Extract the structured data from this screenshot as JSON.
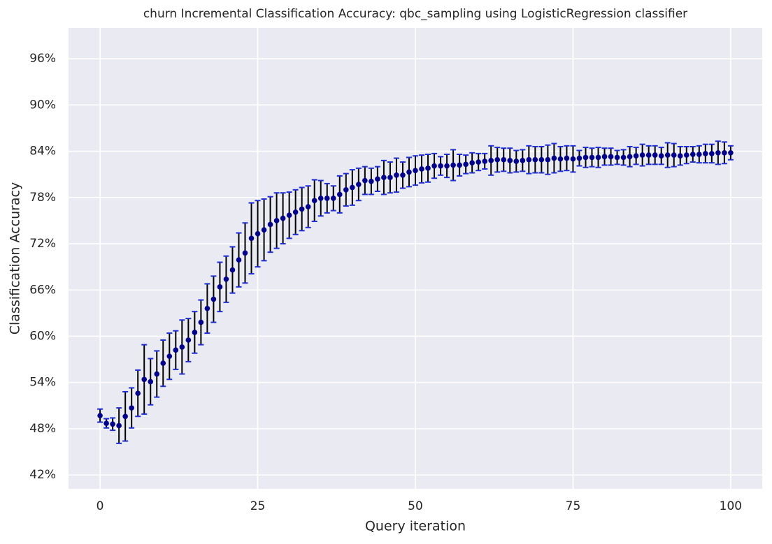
{
  "chart_data": {
    "type": "errorbar",
    "title": "churn Incremental Classification Accuracy: qbc_sampling using LogisticRegression classifier",
    "x_label": "Query iteration",
    "y_label": "Classification Accuracy",
    "x": [
      0,
      1,
      2,
      3,
      4,
      5,
      6,
      7,
      8,
      9,
      10,
      11,
      12,
      13,
      14,
      15,
      16,
      17,
      18,
      19,
      20,
      21,
      22,
      23,
      24,
      25,
      26,
      27,
      28,
      29,
      30,
      31,
      32,
      33,
      34,
      35,
      36,
      37,
      38,
      39,
      40,
      41,
      42,
      43,
      44,
      45,
      46,
      47,
      48,
      49,
      50,
      51,
      52,
      53,
      54,
      55,
      56,
      57,
      58,
      59,
      60,
      61,
      62,
      63,
      64,
      65,
      66,
      67,
      68,
      69,
      70,
      71,
      72,
      73,
      74,
      75,
      76,
      77,
      78,
      79,
      80,
      81,
      82,
      83,
      84,
      85,
      86,
      87,
      88,
      89,
      90,
      91,
      92,
      93,
      94,
      95,
      96,
      97,
      98,
      99,
      100
    ],
    "values": [
      49.7,
      48.7,
      48.6,
      48.4,
      49.6,
      50.7,
      52.6,
      54.4,
      54.1,
      55.1,
      56.5,
      57.4,
      58.2,
      58.6,
      59.5,
      60.5,
      61.8,
      63.6,
      64.8,
      66.4,
      67.4,
      68.6,
      69.9,
      70.8,
      72.7,
      73.3,
      73.8,
      74.5,
      75.0,
      75.3,
      75.7,
      76.1,
      76.5,
      76.8,
      77.6,
      77.9,
      77.9,
      77.9,
      78.4,
      79.0,
      79.3,
      79.7,
      80.2,
      80.1,
      80.4,
      80.6,
      80.6,
      80.9,
      80.9,
      81.3,
      81.5,
      81.7,
      81.8,
      82.1,
      82.1,
      82.1,
      82.2,
      82.2,
      82.3,
      82.5,
      82.6,
      82.7,
      82.8,
      82.9,
      82.9,
      82.8,
      82.7,
      82.8,
      82.9,
      82.9,
      82.9,
      82.9,
      83.1,
      83.0,
      83.1,
      83.0,
      83.1,
      83.2,
      83.2,
      83.2,
      83.3,
      83.3,
      83.2,
      83.2,
      83.3,
      83.4,
      83.5,
      83.5,
      83.5,
      83.4,
      83.5,
      83.5,
      83.4,
      83.5,
      83.6,
      83.6,
      83.7,
      83.7,
      83.8,
      83.8,
      83.8
    ],
    "errors": [
      0.85,
      0.6,
      0.8,
      2.3,
      3.2,
      2.6,
      3.0,
      4.5,
      3.0,
      3.0,
      3.0,
      3.0,
      2.5,
      3.5,
      2.8,
      2.7,
      2.9,
      3.2,
      3.0,
      3.2,
      3.0,
      3.0,
      3.5,
      3.9,
      4.6,
      4.3,
      4.0,
      3.6,
      3.6,
      3.3,
      3.0,
      2.9,
      2.8,
      2.7,
      2.7,
      2.3,
      1.9,
      1.6,
      2.4,
      2.1,
      2.3,
      2.1,
      1.8,
      1.7,
      1.6,
      2.2,
      2.0,
      2.2,
      1.7,
      1.9,
      1.9,
      1.8,
      1.8,
      1.6,
      1.2,
      1.5,
      2.0,
      1.4,
      1.2,
      1.3,
      1.1,
      1.0,
      1.9,
      1.6,
      1.5,
      1.6,
      1.4,
      1.4,
      1.8,
      1.7,
      1.7,
      1.9,
      1.9,
      1.6,
      1.6,
      1.7,
      1.0,
      1.3,
      1.2,
      1.3,
      1.1,
      1.1,
      0.9,
      1.0,
      1.3,
      1.1,
      1.4,
      1.2,
      1.2,
      1.1,
      1.6,
      1.5,
      1.2,
      1.1,
      1.0,
      1.1,
      1.2,
      1.2,
      1.5,
      1.4,
      0.9
    ],
    "color": "#00008b",
    "ecolor": "#000000",
    "capcolor": "#1f2fd8",
    "xlim": [
      -5,
      105
    ],
    "ylim": [
      40.2,
      100
    ],
    "xticks": [
      0,
      25,
      50,
      75,
      100
    ],
    "yticks": [
      {
        "value": 42,
        "label": "42%"
      },
      {
        "value": 48,
        "label": "48%"
      },
      {
        "value": 54,
        "label": "54%"
      },
      {
        "value": 60,
        "label": "60%"
      },
      {
        "value": 66,
        "label": "66%"
      },
      {
        "value": 72,
        "label": "72%"
      },
      {
        "value": 78,
        "label": "78%"
      },
      {
        "value": 84,
        "label": "84%"
      },
      {
        "value": 90,
        "label": "90%"
      },
      {
        "value": 96,
        "label": "96%"
      }
    ],
    "grid": true
  }
}
